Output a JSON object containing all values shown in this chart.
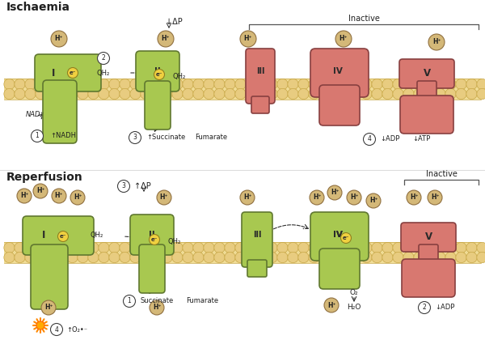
{
  "bg_color": "#ffffff",
  "panel_bg": "#ffffff",
  "membrane_fill": "#f0dc96",
  "membrane_edge": "#c8a848",
  "membrane_circle_fill": "#f0dc96",
  "membrane_circle_edge": "#c8a848",
  "green_fill": "#a8c850",
  "green_edge": "#607830",
  "red_fill": "#d87870",
  "red_edge": "#884040",
  "h_fill": "#d4b878",
  "h_edge": "#907040",
  "elec_fill": "#f0d040",
  "elec_edge": "#908020",
  "arrow_color": "#303030",
  "text_color": "#202020",
  "inactive_color": "#404040",
  "title_isch": "Ischaemia",
  "title_repf": "Reperfusion",
  "inactive": "Inactive",
  "fs_title": 10,
  "fs_label": 7,
  "fs_small": 6
}
